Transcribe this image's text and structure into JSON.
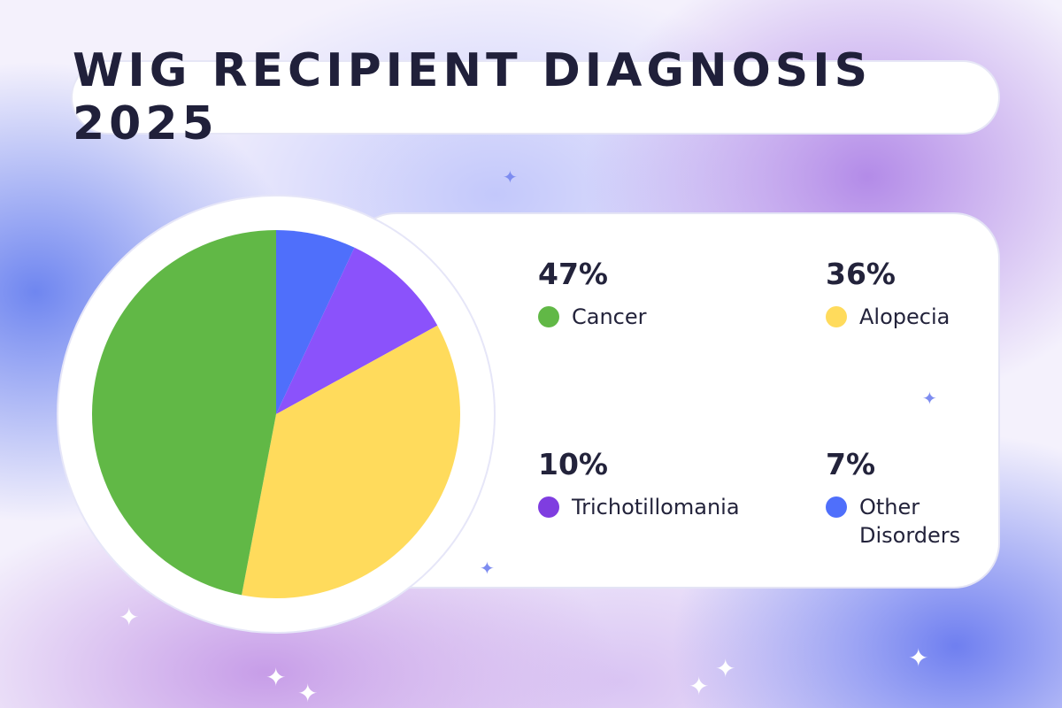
{
  "title": "WIG RECIPIENT DIAGNOSIS 2025",
  "chart_data": {
    "type": "pie",
    "title": "WIG RECIPIENT DIAGNOSIS 2025",
    "slices": [
      {
        "label": "Other Disorders",
        "value": 7,
        "display": "7%",
        "color": "#4f6ffb"
      },
      {
        "label": "Trichotillomania",
        "value": 10,
        "display": "10%",
        "color": "#8b52fb"
      },
      {
        "label": "Alopecia",
        "value": 36,
        "display": "36%",
        "color": "#ffdb5c"
      },
      {
        "label": "Cancer",
        "value": 47,
        "display": "47%",
        "color": "#61b846"
      }
    ],
    "legend_placement": "right"
  }
}
